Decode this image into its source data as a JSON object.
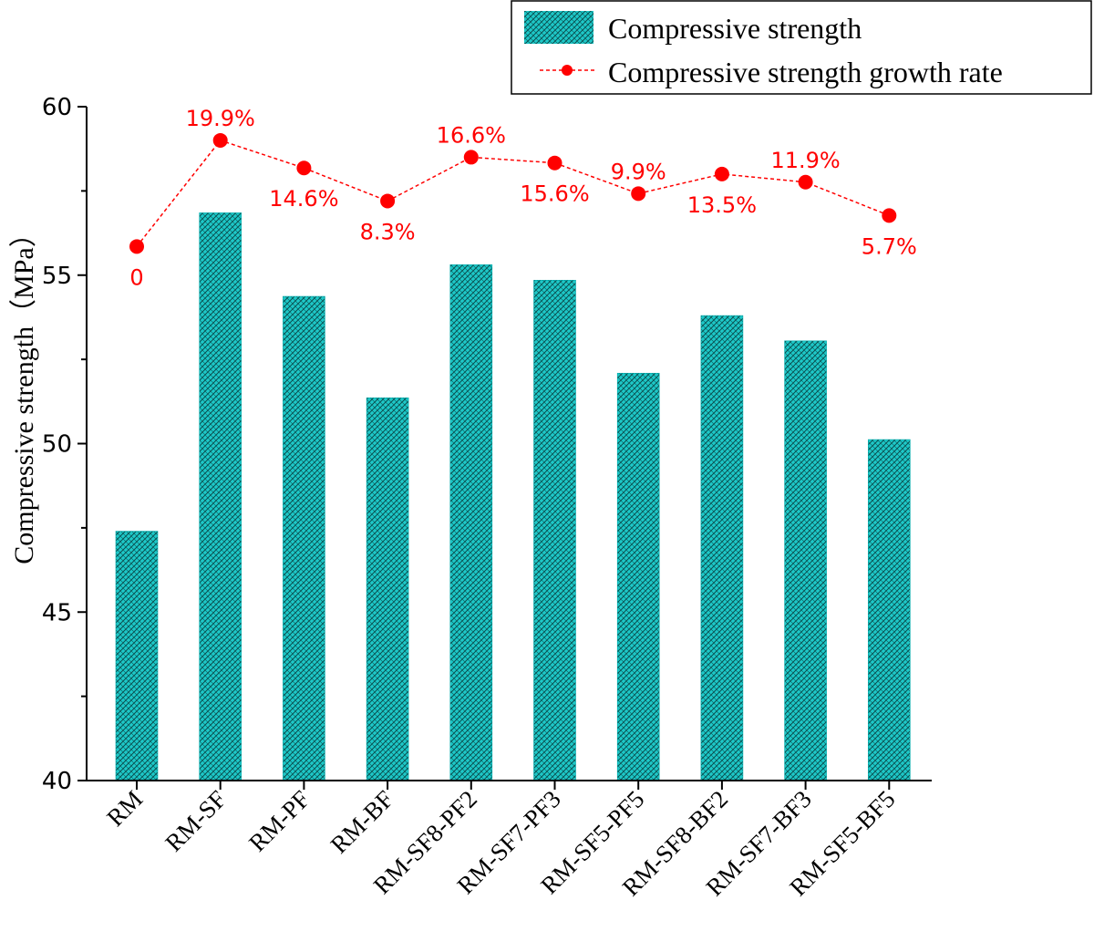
{
  "chart_data": {
    "type": "bar",
    "categories": [
      "RM",
      "RM-SF",
      "RM-PF",
      "RM-BF",
      "RM-SF8-PF2",
      "RM-SF7-PF3",
      "RM-SF5-PF5",
      "RM-SF8-BF2",
      "RM-SF7-BF3",
      "RM-SF5-BF5"
    ],
    "series": [
      {
        "name": "Compressive strength",
        "type": "bar",
        "values": [
          47.4,
          56.85,
          54.37,
          51.36,
          55.31,
          54.85,
          52.09,
          53.8,
          53.05,
          50.12
        ],
        "color": "#1ec8c8",
        "pattern": "crosshatch"
      },
      {
        "name": "Compressive strength growth rate",
        "type": "line",
        "values": [
          55.85,
          59.0,
          58.18,
          57.2,
          58.5,
          58.33,
          57.42,
          58.0,
          57.76,
          56.77
        ],
        "labels": [
          "0",
          "19.9%",
          "14.6%",
          "8.3%",
          "16.6%",
          "15.6%",
          "9.9%",
          "13.5%",
          "11.9%",
          "5.7%"
        ],
        "label_positions": [
          "below",
          "above",
          "below",
          "below",
          "above",
          "below",
          "above",
          "below",
          "above",
          "below"
        ],
        "color": "#ff0000",
        "line_style": "dashed"
      }
    ],
    "ylabel": "Compressive strength（MPa）",
    "xlabel": "",
    "ylim": [
      40,
      60
    ],
    "yticks": [
      40,
      45,
      50,
      55,
      60
    ],
    "legend_position": "top-right",
    "grid": false
  }
}
